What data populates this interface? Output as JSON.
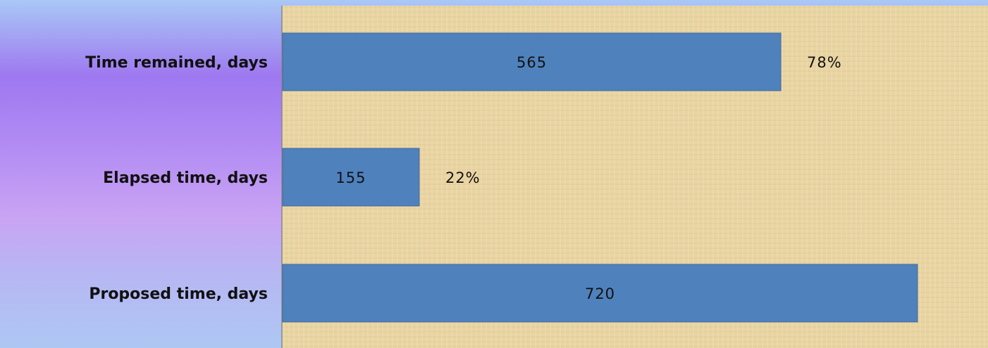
{
  "chart_data": {
    "type": "bar",
    "orientation": "horizontal",
    "categories": [
      "Time remained, days",
      "Elapsed time, days",
      "Proposed time, days"
    ],
    "values": [
      565,
      155,
      720
    ],
    "percent_labels": [
      "78%",
      "22%",
      ""
    ],
    "xlim": [
      0,
      720
    ],
    "grid": false,
    "legend": "none",
    "title": "",
    "xlabel": "",
    "ylabel": ""
  },
  "colors": {
    "bar": "#4f81bd",
    "plot_background": "#e8d3a2",
    "label_panel_gradient": [
      "#a9c8f6",
      "#9e78f0",
      "#c9a3f3",
      "#aec7f3"
    ]
  }
}
